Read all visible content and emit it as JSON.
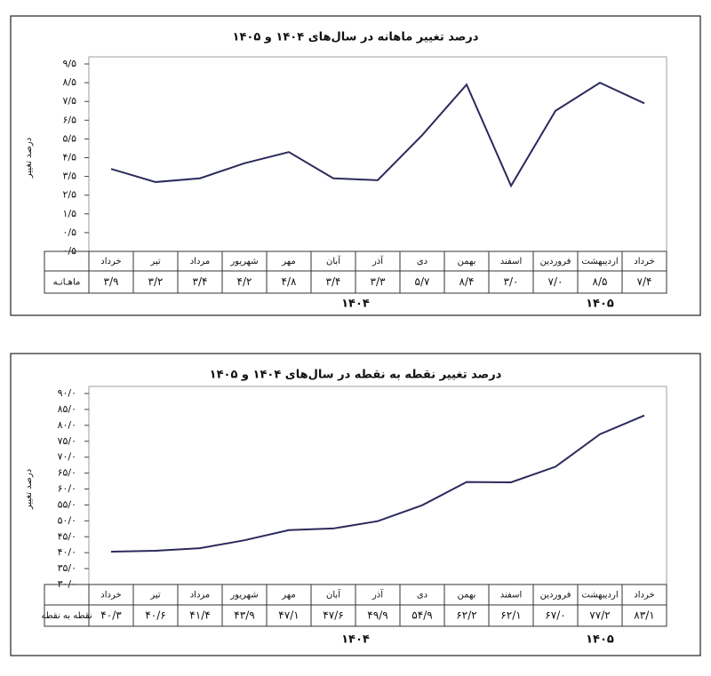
{
  "chart_data": [
    {
      "type": "line",
      "title": "درصد تغییر ماهانه در سال‌های ۱۴۰۴ و ۱۴۰۵",
      "y_label": "درصد تغییر",
      "categories": [
        "خرداد",
        "تیر",
        "مرداد",
        "شهریور",
        "مهر",
        "آبان",
        "آذر",
        "دی",
        "بهمن",
        "اسفند",
        "فروردین",
        "اردیبهشت",
        "خرداد"
      ],
      "row_label": "ماهـانـه",
      "values": [
        3.9,
        3.2,
        3.4,
        4.2,
        4.8,
        3.4,
        3.3,
        5.7,
        8.4,
        3.0,
        7.0,
        8.5,
        7.4
      ],
      "value_labels": [
        "۳/۹",
        "۳/۲",
        "۳/۴",
        "۴/۲",
        "۴/۸",
        "۳/۴",
        "۳/۳",
        "۵/۷",
        "۸/۴",
        "۳/۰",
        "۷/۰",
        "۸/۵",
        "۷/۴"
      ],
      "color": "#2b2a5c",
      "ylim": [
        -0.5,
        9.5
      ],
      "yticks": [
        {
          "value": 9.5,
          "label": "۹/۵"
        },
        {
          "value": 8.5,
          "label": "۸/۵"
        },
        {
          "value": 7.5,
          "label": "۷/۵"
        },
        {
          "value": 6.5,
          "label": "۶/۵"
        },
        {
          "value": 5.5,
          "label": "۵/۵"
        },
        {
          "value": 4.5,
          "label": "۴/۵"
        },
        {
          "value": 3.5,
          "label": "۳/۵"
        },
        {
          "value": 2.5,
          "label": "۲/۵"
        },
        {
          "value": 1.5,
          "label": "۱/۵"
        },
        {
          "value": 0.5,
          "label": "۰/۵"
        },
        {
          "value": -0.5,
          "label": "-۰/۵"
        }
      ],
      "annotations": [
        "۱۴۰۴",
        "۱۴۰۵"
      ]
    },
    {
      "type": "line",
      "title": "درصد تغییر نقطه به نقطه در سال‌های ۱۴۰۴ و ۱۴۰۵",
      "y_label": "درصد تغییر",
      "categories": [
        "خرداد",
        "تیر",
        "مرداد",
        "شهریور",
        "مهر",
        "آبان",
        "آذر",
        "دی",
        "بهمن",
        "اسفند",
        "فروردین",
        "اردیبهشت",
        "خرداد"
      ],
      "row_label": "نقطه به نقطه",
      "values": [
        40.3,
        40.6,
        41.4,
        43.9,
        47.1,
        47.6,
        49.9,
        54.9,
        62.2,
        62.1,
        67.0,
        77.2,
        83.1
      ],
      "value_labels": [
        "۴۰/۳",
        "۴۰/۶",
        "۴۱/۴",
        "۴۳/۹",
        "۴۷/۱",
        "۴۷/۶",
        "۴۹/۹",
        "۵۴/۹",
        "۶۲/۲",
        "۶۲/۱",
        "۶۷/۰",
        "۷۷/۲",
        "۸۳/۱"
      ],
      "color": "#2b2a5c",
      "ylim": [
        30,
        90
      ],
      "yticks": [
        {
          "value": 90,
          "label": "۹۰/۰"
        },
        {
          "value": 85,
          "label": "۸۵/۰"
        },
        {
          "value": 80,
          "label": "۸۰/۰"
        },
        {
          "value": 75,
          "label": "۷۵/۰"
        },
        {
          "value": 70,
          "label": "۷۰/۰"
        },
        {
          "value": 65,
          "label": "۶۵/۰"
        },
        {
          "value": 60,
          "label": "۶۰/۰"
        },
        {
          "value": 55,
          "label": "۵۵/۰"
        },
        {
          "value": 50,
          "label": "۵۰/۰"
        },
        {
          "value": 45,
          "label": "۴۵/۰"
        },
        {
          "value": 40,
          "label": "۴۰/۰"
        },
        {
          "value": 35,
          "label": "۳۵/۰"
        },
        {
          "value": 30,
          "label": "۳۰/۰"
        }
      ],
      "annotations": [
        "۱۴۰۴",
        "۱۴۰۵"
      ]
    }
  ]
}
